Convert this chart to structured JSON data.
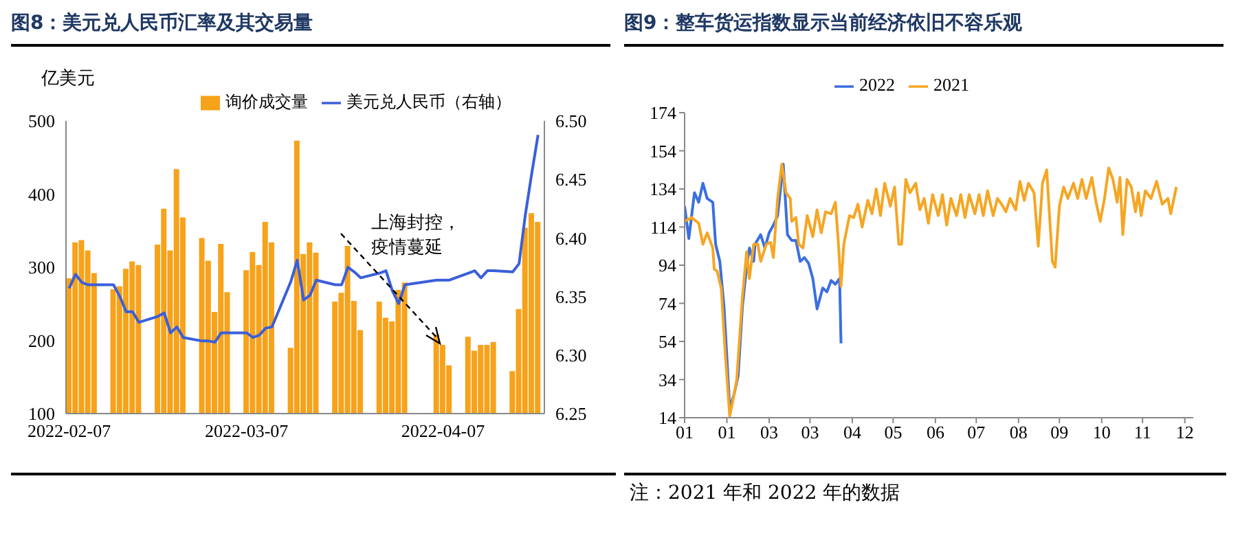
{
  "chart_data": [
    {
      "type": "bar",
      "title": "图8：美元兑人民币汇率及其交易量",
      "ylabel": "亿美元",
      "legend": "top",
      "marker": "none",
      "x": [
        "2022-02-07",
        "2022-02-08",
        "2022-02-09",
        "2022-02-10",
        "2022-02-11",
        "2022-02-14",
        "2022-02-15",
        "2022-02-16",
        "2022-02-17",
        "2022-02-18",
        "2022-02-21",
        "2022-02-22",
        "2022-02-23",
        "2022-02-24",
        "2022-02-25",
        "2022-02-28",
        "2022-03-01",
        "2022-03-02",
        "2022-03-03",
        "2022-03-04",
        "2022-03-07",
        "2022-03-08",
        "2022-03-09",
        "2022-03-10",
        "2022-03-11",
        "2022-03-14",
        "2022-03-15",
        "2022-03-16",
        "2022-03-17",
        "2022-03-18",
        "2022-03-21",
        "2022-03-22",
        "2022-03-23",
        "2022-03-24",
        "2022-03-25",
        "2022-03-28",
        "2022-03-29",
        "2022-03-30",
        "2022-03-31",
        "2022-04-01",
        "2022-04-06",
        "2022-04-07",
        "2022-04-08",
        "2022-04-11",
        "2022-04-12",
        "2022-04-13",
        "2022-04-14",
        "2022-04-15",
        "2022-04-18",
        "2022-04-19",
        "2022-04-20",
        "2022-04-21",
        "2022-04-22"
      ],
      "xlim": [
        "2022-02-06T12:00",
        "2022-04-23T00:00"
      ],
      "xticks": [
        "2022-02-07",
        "2022-03-07",
        "2022-04-07"
      ],
      "ylim": [
        100,
        500
      ],
      "yticks": [
        100,
        200,
        300,
        400,
        500
      ],
      "y2lim": [
        6.25,
        6.5
      ],
      "y2ticks": [
        6.25,
        {
          "value": 6.3,
          "label": "6.30"
        },
        6.35,
        {
          "value": 6.4,
          "label": "6.40"
        },
        6.45,
        {
          "value": 6.5,
          "label": "6.50"
        }
      ],
      "series": [
        {
          "name": "询价成交量",
          "color": "#f7a21b",
          "values": [
            285,
            334,
            337,
            323,
            292,
            270,
            274,
            298,
            308,
            303,
            331,
            380,
            323,
            434,
            368,
            340,
            309,
            239,
            332,
            266,
            296,
            321,
            303,
            362,
            334,
            190,
            473,
            318,
            334,
            320,
            253,
            265,
            329,
            254,
            214,
            253,
            231,
            226,
            269,
            279,
            208,
            194,
            166,
            205,
            186,
            194,
            194,
            198,
            158,
            243,
            354,
            374,
            362
          ]
        },
        {
          "name": "美元兑人民币（右轴）",
          "type": "line",
          "axis": "y2",
          "color": "#3a5fd9",
          "values": [
            6.357,
            6.369,
            6.362,
            6.36,
            6.36,
            6.36,
            6.35,
            6.337,
            6.337,
            6.328,
            6.333,
            6.336,
            6.319,
            6.324,
            6.315,
            6.312,
            6.312,
            6.311,
            6.319,
            6.319,
            6.319,
            6.315,
            6.317,
            6.323,
            6.324,
            6.363,
            6.381,
            6.347,
            6.351,
            6.364,
            6.36,
            6.36,
            6.375,
            6.371,
            6.366,
            6.37,
            6.372,
            6.355,
            6.344,
            6.36,
            6.364,
            6.364,
            6.364,
            6.37,
            6.372,
            6.366,
            6.372,
            6.372,
            6.371,
            6.378,
            6.42,
            6.455,
            6.488
          ]
        }
      ],
      "annotations": [
        "上海封控，疫情蔓延"
      ]
    },
    {
      "type": "line",
      "title": "图9：整车货运指数显示当前经济依旧不容乐观",
      "legend": "top",
      "marker": "none",
      "xlim": [
        "--01-01",
        "--12-28"
      ],
      "xticks": [
        {
          "value": "--01-01",
          "label": "01"
        },
        {
          "value": "--01-31",
          "label": "01"
        },
        {
          "value": "--03-02",
          "label": "03"
        },
        {
          "value": "--03-31",
          "label": "03"
        },
        {
          "value": "--04-30",
          "label": "04"
        },
        {
          "value": "--05-29",
          "label": "05"
        },
        {
          "value": "--06-28",
          "label": "06"
        },
        {
          "value": "--07-27",
          "label": "07"
        },
        {
          "value": "--08-26",
          "label": "08"
        },
        {
          "value": "--09-24",
          "label": "09"
        },
        {
          "value": "--10-24",
          "label": "10"
        },
        {
          "value": "--11-22",
          "label": "11"
        },
        {
          "value": "--12-22",
          "label": "12"
        }
      ],
      "ylim": [
        14,
        174
      ],
      "yticks": [
        14,
        34,
        54,
        74,
        94,
        114,
        134,
        154,
        174
      ],
      "series": [
        {
          "name": "2022",
          "color": "#3b6fe0",
          "x": [
            "--01-01",
            "--01-04",
            "--01-06",
            "--01-08",
            "--01-11",
            "--01-14",
            "--01-17",
            "--01-21",
            "--01-23",
            "--01-26",
            "--01-29",
            "--02-02",
            "--02-05",
            "--02-08",
            "--02-11",
            "--02-14",
            "--02-16",
            "--02-19",
            "--02-20",
            "--02-24",
            "--02-27",
            "--03-02",
            "--03-05",
            "--03-08",
            "--03-12",
            "--03-15",
            "--03-18",
            "--03-21",
            "--03-24",
            "--03-27",
            "--03-30",
            "--04-02",
            "--04-05",
            "--04-09",
            "--04-12",
            "--04-15",
            "--04-18",
            "--04-21",
            "--04-22"
          ],
          "values": [
            125,
            108,
            120,
            132,
            127,
            137,
            129,
            127,
            105,
            96,
            72,
            19,
            26,
            36,
            72,
            93,
            103,
            96,
            105,
            110,
            103,
            111,
            115,
            120,
            147,
            110,
            107,
            107,
            96,
            98,
            95,
            87,
            71,
            82,
            80,
            86,
            84,
            87,
            53
          ]
        },
        {
          "name": "2021",
          "color": "#f5a623",
          "x": [
            "--01-01",
            "--01-06",
            "--01-11",
            "--01-14",
            "--01-17",
            "--01-21",
            "--01-22",
            "--01-24",
            "--01-27",
            "--01-30",
            "--02-02",
            "--02-04",
            "--02-07",
            "--02-11",
            "--02-14",
            "--02-16",
            "--02-19",
            "--02-22",
            "--02-24",
            "--02-28",
            "--03-03",
            "--03-05",
            "--03-08",
            "--03-11",
            "--03-14",
            "--03-17",
            "--03-18",
            "--03-21",
            "--03-23",
            "--03-26",
            "--03-29",
            "--04-02",
            "--04-05",
            "--04-08",
            "--04-11",
            "--04-15",
            "--04-18",
            "--04-20",
            "--04-22",
            "--04-24",
            "--04-28",
            "--05-01",
            "--05-04",
            "--05-07",
            "--05-11",
            "--05-14",
            "--05-17",
            "--05-20",
            "--05-23",
            "--05-27",
            "--05-30",
            "--06-02",
            "--06-04",
            "--06-07",
            "--06-10",
            "--06-14",
            "--06-17",
            "--06-20",
            "--06-23",
            "--06-26",
            "--06-30",
            "--07-03",
            "--07-06",
            "--07-09",
            "--07-13",
            "--07-16",
            "--07-19",
            "--07-22",
            "--07-26",
            "--07-29",
            "--08-01",
            "--08-04",
            "--08-08",
            "--08-11",
            "--08-14",
            "--08-17",
            "--08-20",
            "--08-24",
            "--08-27",
            "--08-30",
            "--09-02",
            "--09-06",
            "--09-09",
            "--09-12",
            "--09-15",
            "--09-19",
            "--09-21",
            "--09-24",
            "--09-27",
            "--09-30",
            "--10-04",
            "--10-07",
            "--10-10",
            "--10-13",
            "--10-17",
            "--10-20",
            "--10-23",
            "--10-26",
            "--10-29",
            "--11-01",
            "--11-04",
            "--11-06",
            "--11-08",
            "--11-11",
            "--11-14",
            "--11-17",
            "--11-19",
            "--11-21",
            "--11-24",
            "--11-28",
            "--12-02",
            "--12-06",
            "--12-10",
            "--12-12",
            "--12-16"
          ],
          "values": [
            117,
            119,
            116,
            105,
            111,
            103,
            92,
            91,
            82,
            46,
            15,
            22,
            34,
            77,
            101,
            87,
            105,
            105,
            96,
            105,
            106,
            98,
            129,
            147,
            132,
            129,
            117,
            119,
            105,
            103,
            120,
            109,
            123,
            111,
            122,
            121,
            127,
            107,
            83,
            105,
            120,
            119,
            126,
            114,
            128,
            121,
            134,
            120,
            137,
            125,
            135,
            105,
            105,
            139,
            132,
            137,
            123,
            129,
            116,
            131,
            120,
            131,
            115,
            129,
            120,
            131,
            119,
            131,
            121,
            131,
            120,
            133,
            120,
            129,
            126,
            122,
            129,
            123,
            138,
            128,
            137,
            132,
            104,
            137,
            144,
            96,
            93,
            125,
            135,
            129,
            137,
            129,
            139,
            129,
            140,
            127,
            117,
            129,
            145,
            139,
            127,
            140,
            110,
            139,
            135,
            122,
            132,
            120,
            133,
            129,
            138,
            126,
            129,
            121,
            135
          ]
        }
      ],
      "annotations": [
        "注：2021 年和 2022 年的数据"
      ]
    }
  ]
}
